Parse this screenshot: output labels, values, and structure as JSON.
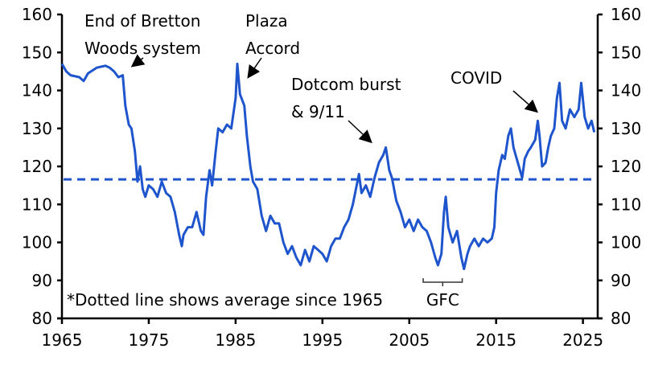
{
  "chart_data": {
    "type": "line",
    "title": "",
    "xlabel": "",
    "ylabel": "",
    "xlim": [
      1965,
      2026.7
    ],
    "ylim": [
      80,
      160
    ],
    "grid": false,
    "line_color": "#1f55cc",
    "x_ticks": [
      1965,
      1975,
      1985,
      1995,
      2005,
      2015,
      2025
    ],
    "y_ticks": [
      80,
      90,
      100,
      110,
      120,
      130,
      140,
      150,
      160
    ],
    "average": {
      "value": 116.6,
      "style": "dashed"
    },
    "footnote": "*Dotted line shows average since 1965",
    "annotations": [
      {
        "lines": [
          "End of Bretton",
          "Woods system"
        ],
        "x": 1972.2,
        "y": 144
      },
      {
        "lines": [
          "Plaza",
          "Accord"
        ],
        "x": 1985.6,
        "y": 141
      },
      {
        "lines": [
          "Dotcom burst",
          "& 9/11"
        ],
        "x": 2001.3,
        "y": 124
      },
      {
        "lines": [
          "COVID"
        ],
        "x": 2020.4,
        "y": 132
      }
    ],
    "bracket": {
      "label": "GFC",
      "from": 2006.6,
      "to": 2011.1
    },
    "series": [
      {
        "x": [
          1965,
          1965.5,
          1966,
          1967,
          1967.5,
          1968,
          1969,
          1970,
          1970.5,
          1971,
          1971.5,
          1972,
          1972.3,
          1972.7,
          1973,
          1973.4,
          1973.7,
          1974,
          1974.3,
          1974.6,
          1975,
          1975.5,
          1976,
          1976.5,
          1977,
          1977.5,
          1978,
          1978.5,
          1978.8,
          1979,
          1979.5,
          1980,
          1980.5,
          1981,
          1981.3,
          1981.6,
          1982,
          1982.3,
          1982.7,
          1983,
          1983.5,
          1984,
          1984.5,
          1985,
          1985.2,
          1985.5,
          1986,
          1986.3,
          1986.7,
          1987,
          1987.5,
          1988,
          1988.5,
          1989,
          1989.5,
          1990,
          1990.5,
          1991,
          1991.5,
          1992,
          1992.5,
          1993,
          1993.5,
          1994,
          1994.5,
          1995,
          1995.5,
          1996,
          1996.5,
          1997,
          1997.5,
          1998,
          1998.5,
          1999.2,
          1999.5,
          2000,
          2000.5,
          2001,
          2001.5,
          2002,
          2002.3,
          2002.7,
          2003,
          2003.5,
          2004,
          2004.5,
          2005,
          2005.5,
          2006,
          2006.5,
          2007,
          2007.5,
          2008,
          2008.3,
          2008.7,
          2009,
          2009.2,
          2009.5,
          2010,
          2010.5,
          2011,
          2011.3,
          2011.7,
          2012,
          2012.5,
          2013,
          2013.5,
          2014,
          2014.5,
          2014.8,
          2015,
          2015.3,
          2015.7,
          2016,
          2016.4,
          2016.7,
          2017,
          2017.5,
          2018,
          2018.3,
          2018.7,
          2019,
          2019.5,
          2019.8,
          2020,
          2020.3,
          2020.7,
          2021,
          2021.3,
          2021.7,
          2022,
          2022.3,
          2022.6,
          2023,
          2023.5,
          2024,
          2024.5,
          2024.8,
          2025.2,
          2025.6,
          2026,
          2026.3
        ],
        "values": [
          147,
          145,
          144,
          143.5,
          142.5,
          144.5,
          146,
          146.5,
          146,
          145,
          143.5,
          144,
          136,
          131,
          130,
          124,
          116,
          120,
          114,
          112,
          115,
          114,
          112,
          116,
          113,
          112,
          108,
          102,
          99,
          102,
          104,
          104,
          108,
          103,
          102,
          112,
          119,
          115,
          124,
          130,
          129,
          131,
          130,
          138,
          147,
          139,
          136,
          128,
          120,
          116,
          114,
          107,
          103,
          107,
          105,
          105,
          100,
          97,
          99,
          96,
          94,
          98,
          95,
          99,
          98,
          97,
          95,
          99,
          101,
          101,
          104,
          106,
          110,
          118,
          113,
          115,
          112,
          117,
          121,
          123,
          125,
          119,
          117,
          111,
          108,
          104,
          106,
          103,
          106,
          104,
          103,
          100,
          96,
          94,
          97,
          108,
          112,
          104,
          100,
          103,
          96,
          93,
          97,
          99,
          101,
          99,
          101,
          100,
          101,
          104,
          113,
          119,
          123,
          122,
          128,
          130,
          125,
          121,
          117,
          122,
          124,
          125,
          127,
          132,
          128,
          120,
          121,
          125,
          128,
          130,
          138,
          142,
          132,
          130,
          135,
          133,
          135,
          142,
          133,
          130,
          132,
          129
        ]
      }
    ]
  }
}
